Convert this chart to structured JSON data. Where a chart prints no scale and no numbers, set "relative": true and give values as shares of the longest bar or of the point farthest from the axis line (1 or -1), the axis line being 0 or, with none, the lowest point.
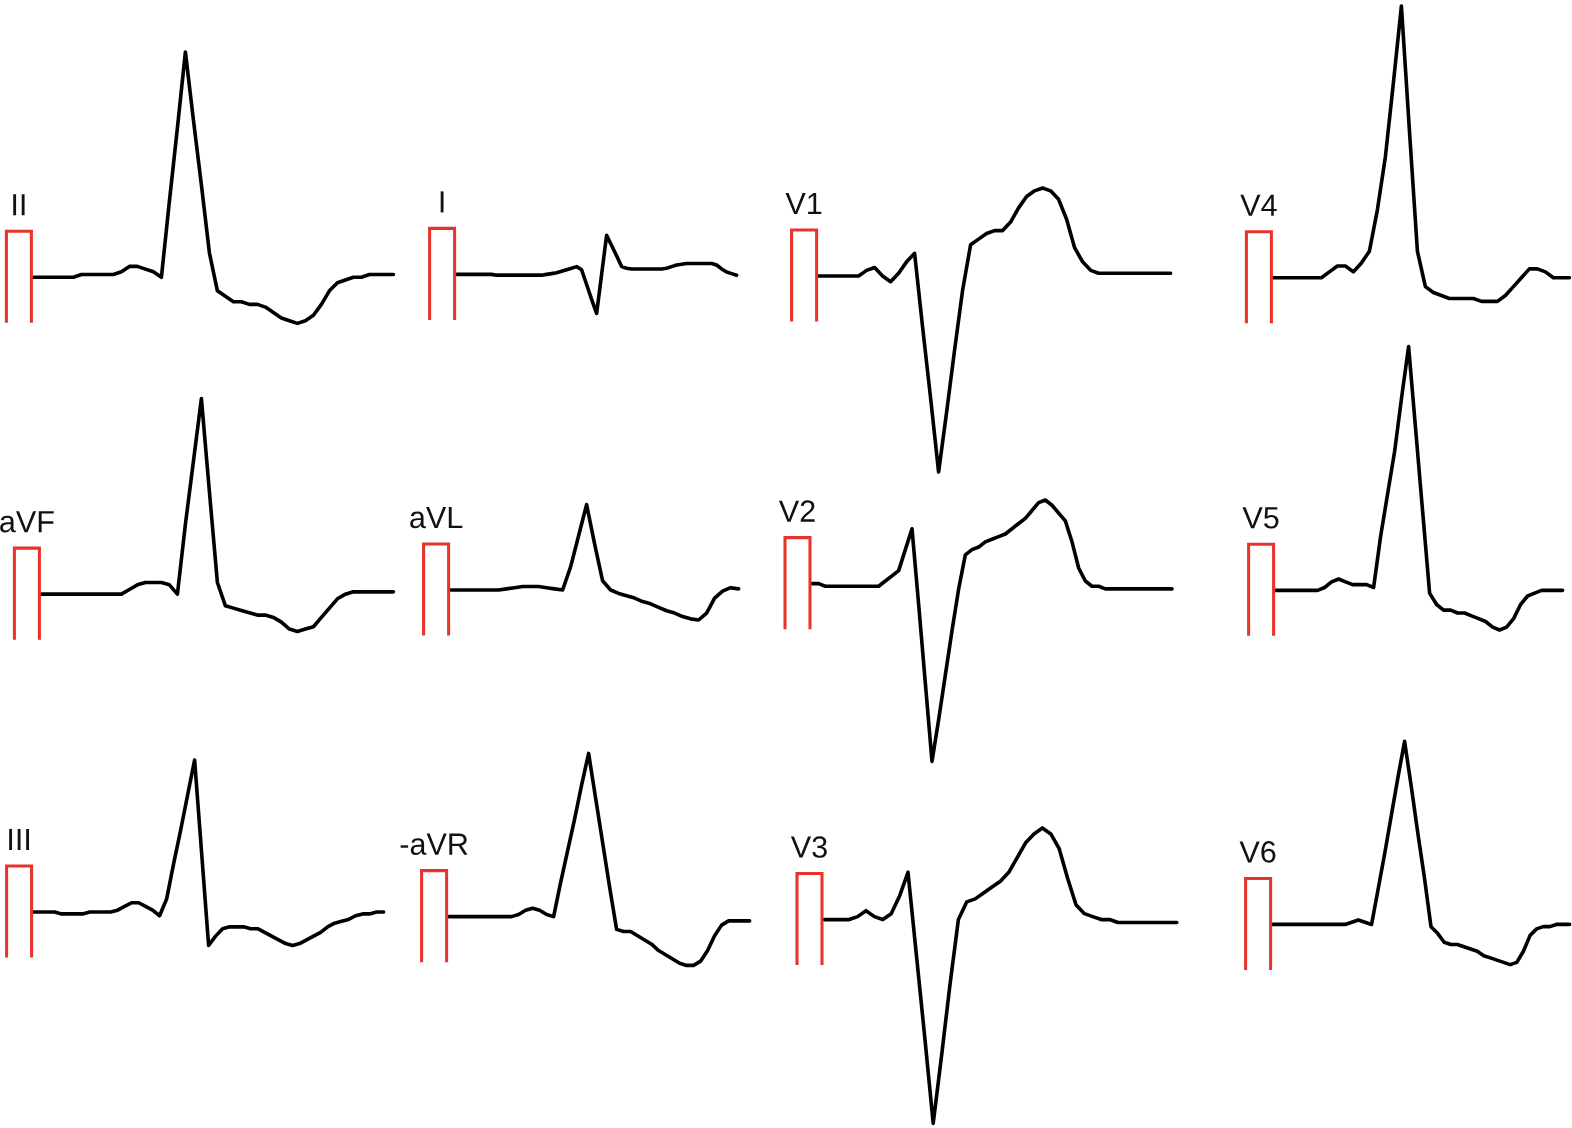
{
  "chart_data": [
    {
      "type": "line",
      "title": "II",
      "relative": true,
      "color": "#000000",
      "categories": [
        null,
        null,
        null,
        null,
        null,
        null,
        null,
        null,
        null,
        null,
        null,
        null,
        null,
        null,
        null,
        null,
        null,
        null,
        null,
        null,
        null,
        null,
        null,
        null,
        null,
        null,
        null,
        null,
        null,
        null,
        null,
        null,
        null,
        null,
        null,
        null,
        null,
        null,
        null,
        null,
        null,
        null,
        null,
        null,
        null,
        null
      ],
      "values": [
        0.17,
        0.17,
        0.17,
        0.17,
        0.17,
        0.17,
        0.18,
        0.18,
        0.18,
        0.18,
        0.18,
        0.19,
        0.21,
        0.21,
        0.2,
        0.19,
        0.17,
        0.45,
        0.72,
        1,
        0.75,
        0.51,
        0.26,
        0.12,
        0.1,
        0.08,
        0.08,
        0.07,
        0.07,
        0.06,
        0.04,
        0.02,
        0.01,
        0,
        0.01,
        0.03,
        0.07,
        0.12,
        0.15,
        0.16,
        0.17,
        0.17,
        0.18,
        0.18,
        0.18,
        0.18
      ]
    },
    {
      "type": "line",
      "title": "I",
      "relative": true,
      "color": "#000000",
      "categories": [
        null,
        null,
        null,
        null,
        null,
        null,
        null,
        null,
        null,
        null,
        null,
        null,
        null,
        null,
        null,
        null,
        null,
        null,
        null,
        null,
        null,
        null,
        null,
        null,
        null,
        null,
        null,
        null,
        null,
        null,
        null,
        null,
        null,
        null,
        null,
        null,
        null,
        null,
        null,
        null,
        null,
        null,
        null,
        null,
        null,
        null,
        null,
        null,
        null,
        null,
        null,
        null,
        null,
        null,
        null,
        null,
        null
      ],
      "values": [
        0.5,
        0.5,
        0.5,
        0.5,
        0.5,
        0.5,
        0.5,
        0.5,
        0.49,
        0.49,
        0.49,
        0.49,
        0.49,
        0.49,
        0.49,
        0.49,
        0.49,
        0.49,
        0.5,
        0.51,
        0.52,
        0.54,
        0.56,
        0.58,
        0.6,
        0.56,
        0.37,
        0.18,
        0,
        0.5,
        1,
        0.87,
        0.74,
        0.6,
        0.58,
        0.57,
        0.57,
        0.57,
        0.57,
        0.57,
        0.57,
        0.57,
        0.58,
        0.6,
        0.62,
        0.63,
        0.64,
        0.64,
        0.64,
        0.64,
        0.64,
        0.64,
        0.62,
        0.57,
        0.53,
        0.51,
        0.49
      ]
    },
    {
      "type": "line",
      "title": "V1",
      "relative": true,
      "color": "#000000",
      "categories": [
        null,
        null,
        null,
        null,
        null,
        null,
        null,
        null,
        null,
        null,
        null,
        null,
        null,
        null,
        null,
        null,
        null,
        null,
        null,
        null,
        null,
        null,
        null,
        null,
        null,
        null,
        null,
        null,
        null,
        null,
        null,
        null,
        null,
        null,
        null,
        null,
        null,
        null,
        null,
        null,
        null,
        null,
        null,
        null,
        null
      ],
      "values": [
        0.69,
        0.69,
        0.69,
        0.69,
        0.69,
        0.69,
        0.71,
        0.72,
        0.69,
        0.67,
        0.7,
        0.74,
        0.77,
        0.51,
        0.26,
        0,
        0.21,
        0.43,
        0.64,
        0.8,
        0.82,
        0.84,
        0.85,
        0.85,
        0.88,
        0.93,
        0.97,
        0.99,
        1,
        0.99,
        0.96,
        0.89,
        0.79,
        0.74,
        0.71,
        0.7,
        0.7,
        0.7,
        0.7,
        0.7,
        0.7,
        0.7,
        0.7,
        0.7,
        0.7
      ]
    },
    {
      "type": "line",
      "title": "V4",
      "relative": true,
      "color": "#000000",
      "categories": [
        null,
        null,
        null,
        null,
        null,
        null,
        null,
        null,
        null,
        null,
        null,
        null,
        null,
        null,
        null,
        null,
        null,
        null,
        null,
        null,
        null,
        null,
        null,
        null,
        null,
        null,
        null,
        null,
        null,
        null,
        null,
        null,
        null,
        null,
        null,
        null,
        null,
        null
      ],
      "values": [
        0.08,
        0.08,
        0.08,
        0.08,
        0.08,
        0.08,
        0.08,
        0.1,
        0.12,
        0.12,
        0.1,
        0.13,
        0.17,
        0.31,
        0.49,
        0.74,
        1,
        0.58,
        0.17,
        0.05,
        0.03,
        0.02,
        0.01,
        0.01,
        0.01,
        0.01,
        0,
        0,
        0,
        0.02,
        0.05,
        0.08,
        0.11,
        0.11,
        0.1,
        0.08,
        0.08,
        0.08
      ]
    },
    {
      "type": "line",
      "title": "aVF",
      "relative": true,
      "color": "#000000",
      "categories": [
        null,
        null,
        null,
        null,
        null,
        null,
        null,
        null,
        null,
        null,
        null,
        null,
        null,
        null,
        null,
        null,
        null,
        null,
        null,
        null,
        null,
        null,
        null,
        null,
        null,
        null,
        null,
        null,
        null,
        null,
        null,
        null,
        null,
        null,
        null,
        null,
        null,
        null,
        null,
        null,
        null,
        null,
        null,
        null,
        null
      ],
      "values": [
        0.16,
        0.16,
        0.16,
        0.16,
        0.16,
        0.16,
        0.16,
        0.16,
        0.16,
        0.16,
        0.16,
        0.18,
        0.2,
        0.21,
        0.21,
        0.21,
        0.2,
        0.16,
        0.46,
        0.73,
        1,
        0.6,
        0.21,
        0.11,
        0.1,
        0.09,
        0.08,
        0.07,
        0.07,
        0.06,
        0.04,
        0.01,
        0,
        0.01,
        0.02,
        0.06,
        0.1,
        0.14,
        0.16,
        0.17,
        0.17,
        0.17,
        0.17,
        0.17,
        0.17
      ]
    },
    {
      "type": "line",
      "title": "aVL",
      "relative": true,
      "color": "#000000",
      "categories": [
        null,
        null,
        null,
        null,
        null,
        null,
        null,
        null,
        null,
        null,
        null,
        null,
        null,
        null,
        null,
        null,
        null,
        null,
        null,
        null,
        null,
        null,
        null,
        null,
        null,
        null,
        null,
        null,
        null,
        null,
        null,
        null,
        null,
        null,
        null,
        null,
        null
      ],
      "values": [
        0.26,
        0.26,
        0.26,
        0.26,
        0.26,
        0.26,
        0.26,
        0.27,
        0.28,
        0.29,
        0.29,
        0.29,
        0.28,
        0.27,
        0.26,
        0.46,
        0.73,
        1,
        0.66,
        0.34,
        0.26,
        0.23,
        0.21,
        0.19,
        0.16,
        0.14,
        0.11,
        0.08,
        0.06,
        0.03,
        0.01,
        0,
        0.06,
        0.19,
        0.25,
        0.28,
        0.27
      ]
    },
    {
      "type": "line",
      "title": "V2",
      "relative": true,
      "color": "#000000",
      "categories": [
        null,
        null,
        null,
        null,
        null,
        null,
        null,
        null,
        null,
        null,
        null,
        null,
        null,
        null,
        null,
        null,
        null,
        null,
        null,
        null,
        null,
        null,
        null,
        null,
        null,
        null,
        null,
        null,
        null,
        null,
        null,
        null,
        null,
        null,
        null,
        null,
        null,
        null,
        null,
        null,
        null,
        null,
        null,
        null,
        null,
        null,
        null,
        null,
        null,
        null,
        null,
        null,
        null,
        null,
        null
      ],
      "values": [
        0.68,
        0.68,
        0.67,
        0.67,
        0.67,
        0.67,
        0.67,
        0.67,
        0.67,
        0.67,
        0.67,
        0.69,
        0.71,
        0.73,
        0.81,
        0.89,
        0.6,
        0.3,
        0,
        0.16,
        0.33,
        0.5,
        0.66,
        0.79,
        0.81,
        0.82,
        0.84,
        0.85,
        0.86,
        0.87,
        0.89,
        0.91,
        0.93,
        0.96,
        0.99,
        1,
        0.98,
        0.95,
        0.92,
        0.84,
        0.74,
        0.69,
        0.67,
        0.67,
        0.66,
        0.66,
        0.66,
        0.66,
        0.66,
        0.66,
        0.66,
        0.66,
        0.66,
        0.66,
        0.66
      ]
    },
    {
      "type": "line",
      "title": "V5",
      "relative": true,
      "color": "#000000",
      "categories": [
        null,
        null,
        null,
        null,
        null,
        null,
        null,
        null,
        null,
        null,
        null,
        null,
        null,
        null,
        null,
        null,
        null,
        null,
        null,
        null,
        null,
        null,
        null,
        null,
        null,
        null,
        null,
        null,
        null,
        null,
        null,
        null,
        null,
        null,
        null,
        null,
        null,
        null,
        null,
        null,
        null,
        null
      ],
      "values": [
        0.14,
        0.14,
        0.14,
        0.14,
        0.14,
        0.14,
        0.14,
        0.15,
        0.17,
        0.18,
        0.17,
        0.16,
        0.16,
        0.16,
        0.15,
        0.33,
        0.48,
        0.63,
        0.82,
        1,
        0.71,
        0.42,
        0.13,
        0.09,
        0.07,
        0.07,
        0.06,
        0.06,
        0.05,
        0.04,
        0.03,
        0.01,
        0,
        0.01,
        0.04,
        0.09,
        0.12,
        0.13,
        0.14,
        0.14,
        0.14,
        0.14
      ]
    },
    {
      "type": "line",
      "title": "III",
      "relative": true,
      "color": "#000000",
      "categories": [
        null,
        null,
        null,
        null,
        null,
        null,
        null,
        null,
        null,
        null,
        null,
        null,
        null,
        null,
        null,
        null,
        null,
        null,
        null,
        null,
        null,
        null,
        null,
        null,
        null,
        null,
        null,
        null,
        null,
        null,
        null,
        null,
        null,
        null,
        null,
        null,
        null,
        null,
        null,
        null,
        null,
        null,
        null,
        null,
        null,
        null,
        null,
        null,
        null,
        null,
        null
      ],
      "values": [
        0.18,
        0.18,
        0.18,
        0.18,
        0.17,
        0.17,
        0.17,
        0.17,
        0.18,
        0.18,
        0.18,
        0.18,
        0.19,
        0.21,
        0.23,
        0.23,
        0.21,
        0.19,
        0.16,
        0.25,
        0.44,
        0.62,
        0.81,
        1,
        0.5,
        0,
        0.05,
        0.09,
        0.1,
        0.1,
        0.1,
        0.09,
        0.09,
        0.07,
        0.05,
        0.03,
        0.01,
        0,
        0.01,
        0.03,
        0.05,
        0.07,
        0.1,
        0.12,
        0.13,
        0.14,
        0.16,
        0.17,
        0.17,
        0.18,
        0.18
      ]
    },
    {
      "type": "line",
      "title": "-aVR",
      "relative": true,
      "color": "#000000",
      "categories": [
        null,
        null,
        null,
        null,
        null,
        null,
        null,
        null,
        null,
        null,
        null,
        null,
        null,
        null,
        null,
        null,
        null,
        null,
        null,
        null,
        null,
        null,
        null,
        null,
        null,
        null,
        null,
        null,
        null,
        null,
        null,
        null,
        null,
        null,
        null,
        null,
        null,
        null,
        null,
        null,
        null,
        null,
        null,
        null
      ],
      "values": [
        0.23,
        0.23,
        0.23,
        0.23,
        0.23,
        0.23,
        0.23,
        0.23,
        0.23,
        0.23,
        0.24,
        0.26,
        0.27,
        0.26,
        0.24,
        0.23,
        0.39,
        0.54,
        0.69,
        0.85,
        1,
        0.79,
        0.58,
        0.37,
        0.17,
        0.16,
        0.16,
        0.14,
        0.12,
        0.1,
        0.07,
        0.05,
        0.03,
        0.01,
        0,
        0,
        0.02,
        0.07,
        0.14,
        0.19,
        0.21,
        0.21,
        0.21,
        0.21
      ]
    },
    {
      "type": "line",
      "title": "V3",
      "relative": true,
      "color": "#000000",
      "categories": [
        null,
        null,
        null,
        null,
        null,
        null,
        null,
        null,
        null,
        null,
        null,
        null,
        null,
        null,
        null,
        null,
        null,
        null,
        null,
        null,
        null,
        null,
        null,
        null,
        null,
        null,
        null,
        null,
        null,
        null,
        null,
        null,
        null,
        null,
        null,
        null,
        null,
        null,
        null,
        null,
        null,
        null,
        null
      ],
      "values": [
        0.69,
        0.69,
        0.69,
        0.69,
        0.7,
        0.72,
        0.7,
        0.69,
        0.71,
        0.77,
        0.85,
        0.57,
        0.29,
        0,
        0.23,
        0.47,
        0.69,
        0.75,
        0.76,
        0.78,
        0.8,
        0.82,
        0.85,
        0.9,
        0.95,
        0.98,
        1,
        0.98,
        0.93,
        0.83,
        0.74,
        0.71,
        0.7,
        0.69,
        0.69,
        0.68,
        0.68,
        0.68,
        0.68,
        0.68,
        0.68,
        0.68,
        0.68
      ]
    },
    {
      "type": "line",
      "title": "V6",
      "relative": true,
      "color": "#000000",
      "categories": [
        null,
        null,
        null,
        null,
        null,
        null,
        null,
        null,
        null,
        null,
        null,
        null,
        null,
        null,
        null,
        null,
        null,
        null,
        null,
        null,
        null,
        null,
        null,
        null,
        null,
        null,
        null,
        null,
        null,
        null,
        null,
        null,
        null,
        null,
        null,
        null,
        null,
        null,
        null,
        null,
        null,
        null,
        null,
        null,
        null,
        null
      ],
      "values": [
        0.18,
        0.18,
        0.18,
        0.18,
        0.18,
        0.18,
        0.18,
        0.18,
        0.18,
        0.18,
        0.18,
        0.18,
        0.19,
        0.2,
        0.19,
        0.18,
        0.34,
        0.5,
        0.67,
        0.84,
        1,
        0.8,
        0.59,
        0.39,
        0.17,
        0.14,
        0.1,
        0.09,
        0.09,
        0.08,
        0.07,
        0.06,
        0.04,
        0.03,
        0.02,
        0.01,
        0,
        0.01,
        0.06,
        0.13,
        0.16,
        0.17,
        0.17,
        0.18,
        0.18,
        0.18
      ]
    }
  ]
}
